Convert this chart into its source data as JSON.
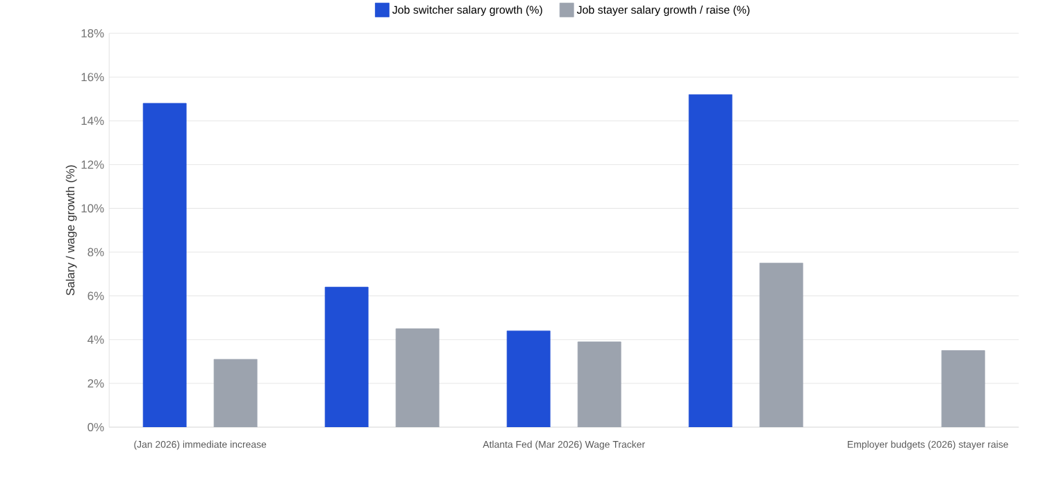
{
  "chart_data": {
    "type": "bar",
    "categories": [
      "(Jan 2026) immediate increase",
      null,
      "Atlanta Fed (Mar 2026) Wage Tracker",
      null,
      "Employer budgets (2026) stayer raise"
    ],
    "series": [
      {
        "name": "Job switcher salary growth (%)",
        "color": "#1f4fd6",
        "values": [
          14.8,
          6.4,
          4.4,
          15.2,
          null
        ]
      },
      {
        "name": "Job stayer salary growth / raise (%)",
        "color": "#9ca3ae",
        "values": [
          3.1,
          4.5,
          3.9,
          7.5,
          3.5
        ]
      }
    ],
    "ylabel": "Salary / wage growth (%)",
    "ylim": [
      0,
      18
    ],
    "yticks": [
      {
        "value": 0,
        "label": "0%"
      },
      {
        "value": 2,
        "label": "2%"
      },
      {
        "value": 4,
        "label": "4%"
      },
      {
        "value": 6,
        "label": "6%"
      },
      {
        "value": 8,
        "label": "8%"
      },
      {
        "value": 10,
        "label": "10%"
      },
      {
        "value": 12,
        "label": "12%"
      },
      {
        "value": 14,
        "label": "14%"
      },
      {
        "value": 16,
        "label": "16%"
      },
      {
        "value": 18,
        "label": "18%"
      }
    ],
    "grid": "y",
    "legend": "top"
  }
}
